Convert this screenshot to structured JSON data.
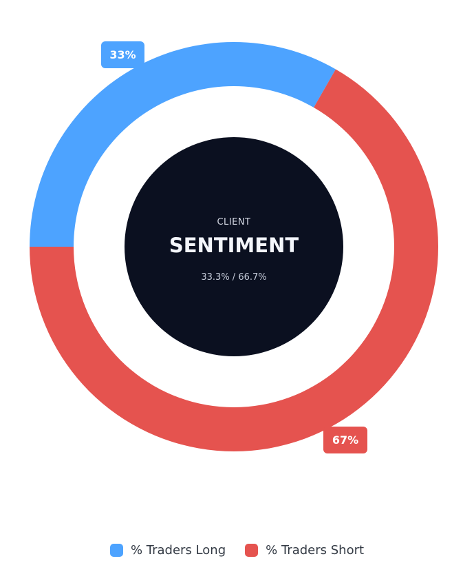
{
  "chart_data": {
    "type": "pie",
    "variant": "donut",
    "title": "SENTIMENT",
    "subtitle": "CLIENT",
    "center_ratio_text": "33.3% / 66.7%",
    "series": [
      {
        "name": "% Traders Long",
        "value": 33.3,
        "label": "33%",
        "color": "#4da3ff"
      },
      {
        "name": "% Traders Short",
        "value": 66.7,
        "label": "67%",
        "color": "#e5534f"
      }
    ],
    "start_direction": "left",
    "legend_position": "bottom"
  },
  "colors": {
    "center_fill": "#0b1020",
    "center_title": "#f4f6fb",
    "center_eyebrow": "#d7dbe6",
    "center_ratio": "#c6ccda",
    "badge_text": "#ffffff"
  }
}
